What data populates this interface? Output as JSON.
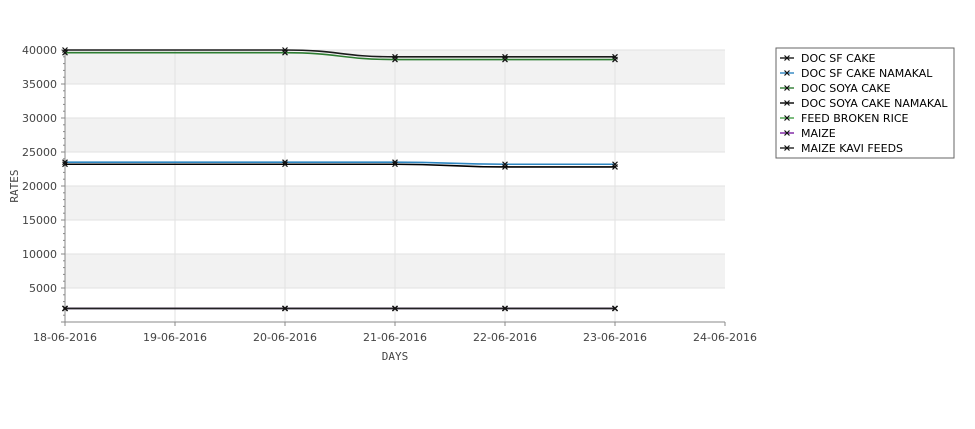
{
  "chart_data": {
    "type": "line",
    "xlabel": "DAYS",
    "ylabel": "RATES",
    "x": [
      "18-06-2016",
      "19-06-2016",
      "20-06-2016",
      "21-06-2016",
      "22-06-2016",
      "23-06-2016",
      "24-06-2016"
    ],
    "yticks": [
      5000,
      10000,
      15000,
      20000,
      25000,
      30000,
      35000,
      40000
    ],
    "ylim": [
      0,
      40000
    ],
    "grid": true,
    "legend_position": "top-right",
    "series": [
      {
        "name": "DOC SF CAKE",
        "color": "#1a1a1a",
        "x": [
          0,
          2,
          3,
          4,
          5
        ],
        "values": [
          40000,
          40000,
          39000,
          39000,
          39000
        ]
      },
      {
        "name": "DOC SF CAKE NAMAKAL",
        "color": "#2e86c1",
        "x": [
          0,
          2,
          3,
          4,
          5
        ],
        "values": [
          23500,
          23500,
          23500,
          23200,
          23200
        ]
      },
      {
        "name": "DOC SOYA CAKE",
        "color": "#2e7d32",
        "x": [
          0,
          2,
          3,
          4,
          5
        ],
        "values": [
          39600,
          39600,
          38600,
          38600,
          38600
        ]
      },
      {
        "name": "DOC SOYA CAKE NAMAKAL",
        "color": "#000000",
        "x": [
          0,
          2,
          3,
          4,
          5
        ],
        "values": [
          23200,
          23200,
          23200,
          22800,
          22800
        ]
      },
      {
        "name": "FEED BROKEN RICE",
        "color": "#43a047",
        "x": [
          0,
          2,
          3,
          4,
          5
        ],
        "values": [
          2000,
          2000,
          2000,
          2000,
          2000
        ]
      },
      {
        "name": "MAIZE",
        "color": "#7b1fa2",
        "x": [
          0,
          2,
          3,
          4,
          5
        ],
        "values": [
          2000,
          2000,
          2000,
          2000,
          2000
        ]
      },
      {
        "name": "MAIZE KAVI FEEDS",
        "color": "#222222",
        "x": [
          0,
          2,
          3,
          4,
          5
        ],
        "values": [
          2000,
          2000,
          2000,
          2000,
          2000
        ]
      }
    ]
  }
}
